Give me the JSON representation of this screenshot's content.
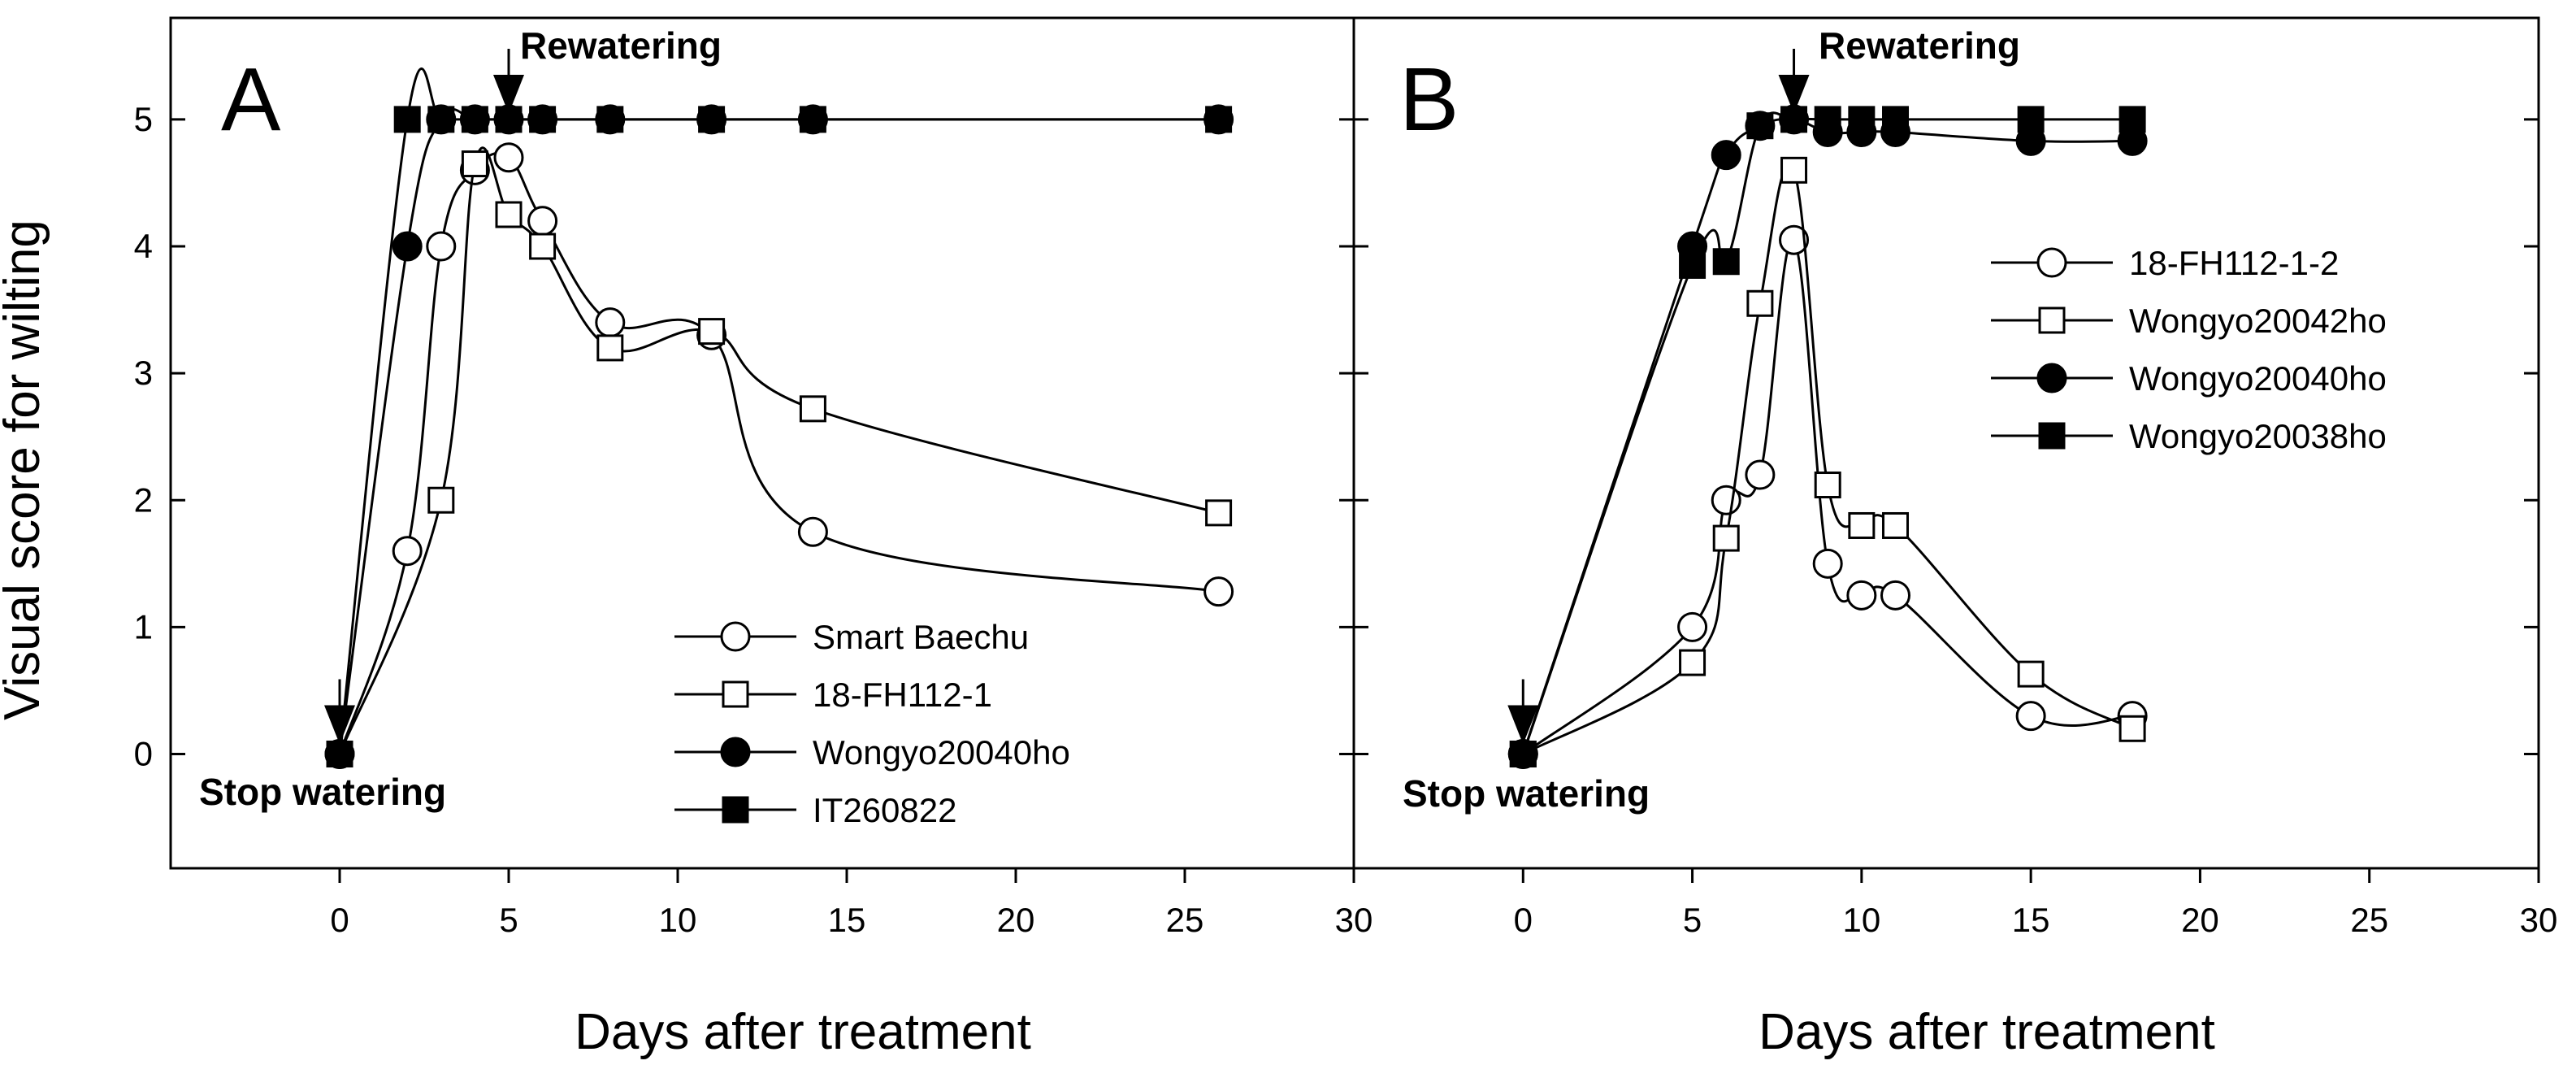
{
  "chart_data": {
    "type": "line",
    "ylabel": "Visual score for wilting",
    "y_ticks": [
      "0",
      "1",
      "2",
      "3",
      "4",
      "5"
    ],
    "x_ticks": [
      "0",
      "5",
      "10",
      "15",
      "20",
      "25",
      "30"
    ],
    "ylim": [
      -0.9,
      5.8
    ],
    "xlim": [
      -5,
      30
    ],
    "grid": false,
    "panels": [
      {
        "id": "A",
        "label": "A",
        "xlabel": "Days after treatment",
        "annotations": {
          "stop": "Stop watering",
          "rewater": "Rewatering"
        },
        "legend_position": "bottom-right",
        "series": [
          {
            "name": "Smart Baechu",
            "marker": "circle-open",
            "x": [
              0,
              2,
              3,
              4,
              5,
              6,
              8,
              11,
              14,
              26
            ],
            "y": [
              0,
              1.6,
              4.0,
              4.6,
              4.7,
              4.2,
              3.4,
              3.3,
              1.75,
              1.28
            ]
          },
          {
            "name": "18-FH112-1",
            "marker": "square-open",
            "x": [
              0,
              3,
              4,
              5,
              6,
              8,
              11,
              14,
              26
            ],
            "y": [
              0,
              2.0,
              4.65,
              4.25,
              4.0,
              3.2,
              3.33,
              2.72,
              1.9
            ]
          },
          {
            "name": "Wongyo20040ho",
            "marker": "circle-filled",
            "x": [
              0,
              2,
              3,
              4,
              5,
              6,
              8,
              11,
              14,
              26
            ],
            "y": [
              0,
              4.0,
              5,
              5,
              5,
              5,
              5,
              5,
              5,
              5
            ]
          },
          {
            "name": "IT260822",
            "marker": "square-filled",
            "x": [
              0,
              2,
              3,
              4,
              5,
              6,
              8,
              11,
              14,
              26
            ],
            "y": [
              0,
              5,
              5,
              5,
              5,
              5,
              5,
              5,
              5,
              5
            ]
          }
        ]
      },
      {
        "id": "B",
        "label": "B",
        "xlabel": "Days after treatment",
        "annotations": {
          "stop": "Stop watering",
          "rewater": "Rewatering"
        },
        "legend_position": "top-right",
        "series": [
          {
            "name": "18-FH112-1-2",
            "marker": "circle-open",
            "x": [
              0,
              5,
              6,
              7,
              8,
              9,
              10,
              11,
              15,
              18
            ],
            "y": [
              0,
              1.0,
              2.0,
              2.2,
              4.05,
              1.5,
              1.25,
              1.25,
              0.3,
              0.3
            ]
          },
          {
            "name": "Wongyo20042ho",
            "marker": "square-open",
            "x": [
              0,
              5,
              6,
              7,
              8,
              9,
              10,
              11,
              15,
              18
            ],
            "y": [
              0,
              0.72,
              1.7,
              3.55,
              4.6,
              2.12,
              1.8,
              1.8,
              0.63,
              0.2
            ]
          },
          {
            "name": "Wongyo20040ho",
            "marker": "circle-filled",
            "x": [
              0,
              5,
              6,
              7,
              8,
              9,
              10,
              11,
              15,
              18
            ],
            "y": [
              0,
              4.0,
              4.72,
              4.95,
              5.0,
              4.9,
              4.9,
              4.9,
              4.83,
              4.83
            ]
          },
          {
            "name": "Wongyo20038ho",
            "marker": "square-filled",
            "x": [
              0,
              5,
              6,
              7,
              8,
              9,
              10,
              11,
              15,
              18
            ],
            "y": [
              0,
              3.85,
              3.88,
              4.95,
              5.0,
              5,
              5,
              5,
              5,
              5
            ]
          }
        ]
      }
    ]
  }
}
